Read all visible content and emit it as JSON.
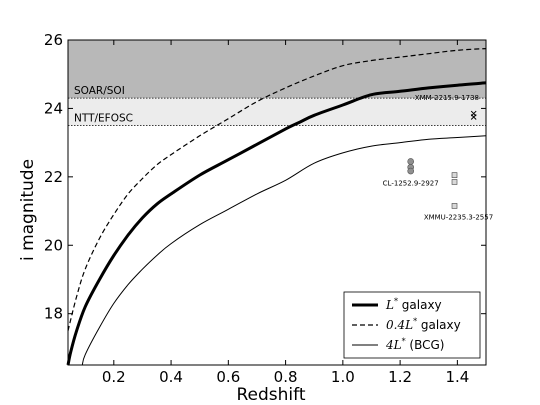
{
  "chart_data": {
    "type": "line",
    "title": "",
    "xlabel": "Redshift",
    "ylabel": "i magnitude",
    "xlim": [
      0.04,
      1.5
    ],
    "ylim": [
      16.5,
      26.0
    ],
    "xticks": [
      "0.2",
      "0.4",
      "0.6",
      "0.8",
      "1.0",
      "1.2",
      "1.4"
    ],
    "yticks": [
      "18",
      "20",
      "22",
      "24",
      "26"
    ],
    "grid": false,
    "legend_position": "bottom-right",
    "series": [
      {
        "name": "L* galaxy",
        "legend_main": "L",
        "legend_sup": "*",
        "legend_rest": " galaxy",
        "style": "solid-thick",
        "x": [
          0.04,
          0.05,
          0.07,
          0.1,
          0.15,
          0.2,
          0.25,
          0.3,
          0.35,
          0.4,
          0.5,
          0.6,
          0.7,
          0.8,
          0.85,
          0.9,
          1.0,
          1.1,
          1.2,
          1.3,
          1.4,
          1.5
        ],
        "y": [
          16.5,
          16.9,
          17.5,
          18.2,
          19.0,
          19.7,
          20.3,
          20.8,
          21.2,
          21.5,
          22.05,
          22.5,
          22.95,
          23.4,
          23.6,
          23.8,
          24.1,
          24.4,
          24.5,
          24.6,
          24.68,
          24.75
        ]
      },
      {
        "name": "0.4L* galaxy",
        "legend_main": "0.4L",
        "legend_sup": "*",
        "legend_rest": " galaxy",
        "style": "dashed",
        "x": [
          0.04,
          0.07,
          0.1,
          0.15,
          0.2,
          0.25,
          0.3,
          0.35,
          0.4,
          0.5,
          0.6,
          0.7,
          0.8,
          0.9,
          1.0,
          1.1,
          1.2,
          1.3,
          1.4,
          1.5
        ],
        "y": [
          17.5,
          18.5,
          19.3,
          20.2,
          20.9,
          21.5,
          21.95,
          22.35,
          22.65,
          23.2,
          23.7,
          24.2,
          24.6,
          24.95,
          25.25,
          25.4,
          25.5,
          25.6,
          25.7,
          25.75
        ]
      },
      {
        "name": "4L* (BCG)",
        "legend_main": "4L",
        "legend_sup": "*",
        "legend_rest": " (BCG)",
        "style": "solid-thin",
        "x": [
          0.09,
          0.1,
          0.15,
          0.2,
          0.25,
          0.3,
          0.35,
          0.4,
          0.5,
          0.6,
          0.7,
          0.8,
          0.9,
          1.0,
          1.1,
          1.2,
          1.3,
          1.4,
          1.5
        ],
        "y": [
          16.5,
          16.8,
          17.6,
          18.3,
          18.85,
          19.3,
          19.7,
          20.05,
          20.6,
          21.05,
          21.5,
          21.9,
          22.4,
          22.7,
          22.9,
          23.0,
          23.1,
          23.15,
          23.2
        ]
      }
    ],
    "bands": [
      {
        "label": "SOAR/SOI",
        "from": 24.3,
        "to": 26.0,
        "color": "#b8b8b8"
      },
      {
        "label": "NTT/EFOSC",
        "from": 23.5,
        "to": 24.3,
        "color": "#ececec"
      }
    ],
    "clusters": [
      {
        "label": "XMM-2215.9-1738",
        "marker": "x",
        "points": [
          {
            "x": 1.457,
            "y": 23.85
          },
          {
            "x": 1.457,
            "y": 23.75
          }
        ]
      },
      {
        "label": "CL-1252.9-2927",
        "marker": "circle",
        "points": [
          {
            "x": 1.237,
            "y": 22.45
          },
          {
            "x": 1.237,
            "y": 22.28
          },
          {
            "x": 1.237,
            "y": 22.17
          }
        ]
      },
      {
        "label": "XMMU-2235.3-2557",
        "marker": "square",
        "points": [
          {
            "x": 1.39,
            "y": 22.05
          },
          {
            "x": 1.39,
            "y": 21.85
          },
          {
            "x": 1.39,
            "y": 21.15
          }
        ]
      }
    ]
  },
  "colors": {
    "background": "#ffffff",
    "band_soar": "#b8b8b8",
    "band_ntt": "#ececec",
    "lines": "#000000",
    "marker_circle": "#909090",
    "marker_square": "#d8d8d8"
  }
}
